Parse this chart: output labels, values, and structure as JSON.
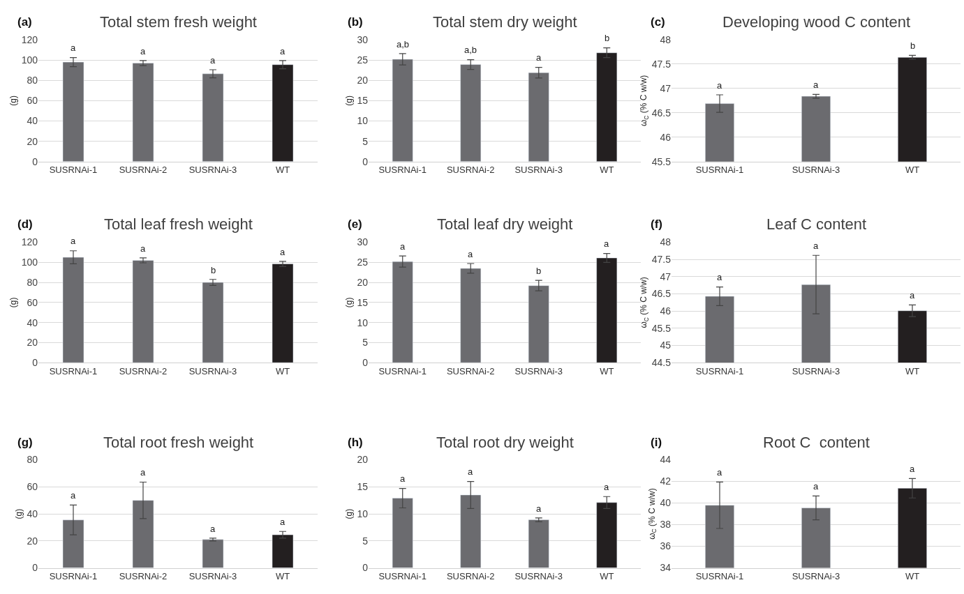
{
  "chart_data": [
    {
      "type": "bar",
      "title": "Total stem fresh weight",
      "ylabel": "(g)",
      "categories": [
        "SUSRNAi-1",
        "SUSRNAi-2",
        "SUSRNAi-3",
        "WT"
      ],
      "values": [
        98,
        97,
        86.5,
        95.5
      ],
      "errors": [
        4.5,
        2.5,
        4,
        4
      ],
      "colors": [
        "#6b6b6f",
        "#6b6b6f",
        "#6b6b6f",
        "#231f20"
      ],
      "ylim": [
        0,
        120
      ],
      "yticks": [
        0,
        20,
        40,
        60,
        80,
        100,
        120
      ],
      "grid": "y",
      "annotations": [
        "(a)",
        "a",
        "a",
        "a",
        "a"
      ]
    },
    {
      "type": "bar",
      "title": "Total stem dry weight",
      "ylabel": "(g)",
      "categories": [
        "SUSRNAi-1",
        "SUSRNAi-2",
        "SUSRNAi-3",
        "WT"
      ],
      "values": [
        25.2,
        23.9,
        21.9,
        26.8
      ],
      "errors": [
        1.4,
        1.2,
        1.3,
        1.2
      ],
      "colors": [
        "#6b6b6f",
        "#6b6b6f",
        "#6b6b6f",
        "#231f20"
      ],
      "ylim": [
        0,
        30
      ],
      "yticks": [
        0,
        5,
        10,
        15,
        20,
        25,
        30
      ],
      "grid": "y",
      "annotations": [
        "(b)",
        "a,b",
        "a,b",
        "a",
        "b"
      ]
    },
    {
      "type": "bar",
      "title": "Developing wood C content",
      "ylabel": "ω$_{C}$ (% C w/w)",
      "categories": [
        "SUSRNAi-1",
        "SUSRNAi-3",
        "WT"
      ],
      "values": [
        46.69,
        46.84,
        47.64
      ],
      "errors": [
        0.18,
        0.04,
        0.04
      ],
      "colors": [
        "#6b6b6f",
        "#6b6b6f",
        "#231f20"
      ],
      "ylim": [
        45.5,
        48
      ],
      "yticks": [
        45.5,
        46,
        46.5,
        47,
        47.5,
        48
      ],
      "grid": "y",
      "annotations": [
        "(c)",
        "a",
        "a",
        "b"
      ]
    },
    {
      "type": "bar",
      "title": "Total leaf fresh weight",
      "ylabel": "(g)",
      "categories": [
        "SUSRNAi-1",
        "SUSRNAi-2",
        "SUSRNAi-3",
        "WT"
      ],
      "values": [
        105,
        102,
        80,
        98.5
      ],
      "errors": [
        6.5,
        2.5,
        3,
        2.5
      ],
      "colors": [
        "#6b6b6f",
        "#6b6b6f",
        "#6b6b6f",
        "#231f20"
      ],
      "ylim": [
        0,
        120
      ],
      "yticks": [
        0,
        20,
        40,
        60,
        80,
        100,
        120
      ],
      "grid": "y",
      "annotations": [
        "(d)",
        "a",
        "a",
        "b",
        "a"
      ]
    },
    {
      "type": "bar",
      "title": "Total leaf dry weight",
      "ylabel": "(g)",
      "categories": [
        "SUSRNAi-1",
        "SUSRNAi-2",
        "SUSRNAi-3",
        "WT"
      ],
      "values": [
        25.2,
        23.5,
        19.2,
        26.1
      ],
      "errors": [
        1.4,
        1.2,
        1.3,
        1.1
      ],
      "colors": [
        "#6b6b6f",
        "#6b6b6f",
        "#6b6b6f",
        "#231f20"
      ],
      "ylim": [
        0,
        30
      ],
      "yticks": [
        0,
        5,
        10,
        15,
        20,
        25,
        30
      ],
      "grid": "y",
      "annotations": [
        "(e)",
        "a",
        "a",
        "b",
        "a"
      ]
    },
    {
      "type": "bar",
      "title": "Leaf C content",
      "ylabel": "ω$_{C}$ (% C w/w)",
      "categories": [
        "SUSRNAi-1",
        "SUSRNAi-3",
        "WT"
      ],
      "values": [
        46.43,
        46.77,
        46.01
      ],
      "errors": [
        0.27,
        0.85,
        0.17
      ],
      "colors": [
        "#6b6b6f",
        "#6b6b6f",
        "#231f20"
      ],
      "ylim": [
        44.5,
        48
      ],
      "yticks": [
        44.5,
        45,
        45.5,
        46,
        46.5,
        47,
        47.5,
        48
      ],
      "grid": "y",
      "annotations": [
        "(f)",
        "a",
        "a",
        "a"
      ]
    },
    {
      "type": "bar",
      "title": "Total root fresh weight",
      "ylabel": "(g)",
      "categories": [
        "SUSRNAi-1",
        "SUSRNAi-2",
        "SUSRNAi-3",
        "WT"
      ],
      "values": [
        35.5,
        50,
        21,
        24.5
      ],
      "errors": [
        11,
        13.5,
        1,
        2.5
      ],
      "colors": [
        "#6b6b6f",
        "#6b6b6f",
        "#6b6b6f",
        "#231f20"
      ],
      "ylim": [
        0,
        80
      ],
      "yticks": [
        0,
        20,
        40,
        60,
        80
      ],
      "grid": "y",
      "annotations": [
        "(g)",
        "a",
        "a",
        "a",
        "a"
      ]
    },
    {
      "type": "bar",
      "title": "Total root dry weight",
      "ylabel": "(g)",
      "categories": [
        "SUSRNAi-1",
        "SUSRNAi-2",
        "SUSRNAi-3",
        "WT"
      ],
      "values": [
        12.9,
        13.5,
        8.9,
        12.1
      ],
      "errors": [
        1.8,
        2.5,
        0.35,
        1.1
      ],
      "colors": [
        "#6b6b6f",
        "#6b6b6f",
        "#6b6b6f",
        "#231f20"
      ],
      "ylim": [
        0,
        20
      ],
      "yticks": [
        0,
        5,
        10,
        15,
        20
      ],
      "grid": "y",
      "annotations": [
        "(h)",
        "a",
        "a",
        "a",
        "a"
      ]
    },
    {
      "type": "bar",
      "title": "Root C  content",
      "ylabel": "ω$_{C}$ (% C w/w)",
      "categories": [
        "SUSRNAi-1",
        "SUSRNAi-3",
        "WT"
      ],
      "values": [
        39.8,
        39.55,
        41.37
      ],
      "errors": [
        2.15,
        1.1,
        0.9
      ],
      "colors": [
        "#6b6b6f",
        "#6b6b6f",
        "#231f20"
      ],
      "ylim": [
        34,
        44
      ],
      "yticks": [
        34,
        36,
        38,
        40,
        42,
        44
      ],
      "grid": "y",
      "annotations": [
        "(i)",
        "a",
        "a",
        "a"
      ]
    }
  ]
}
